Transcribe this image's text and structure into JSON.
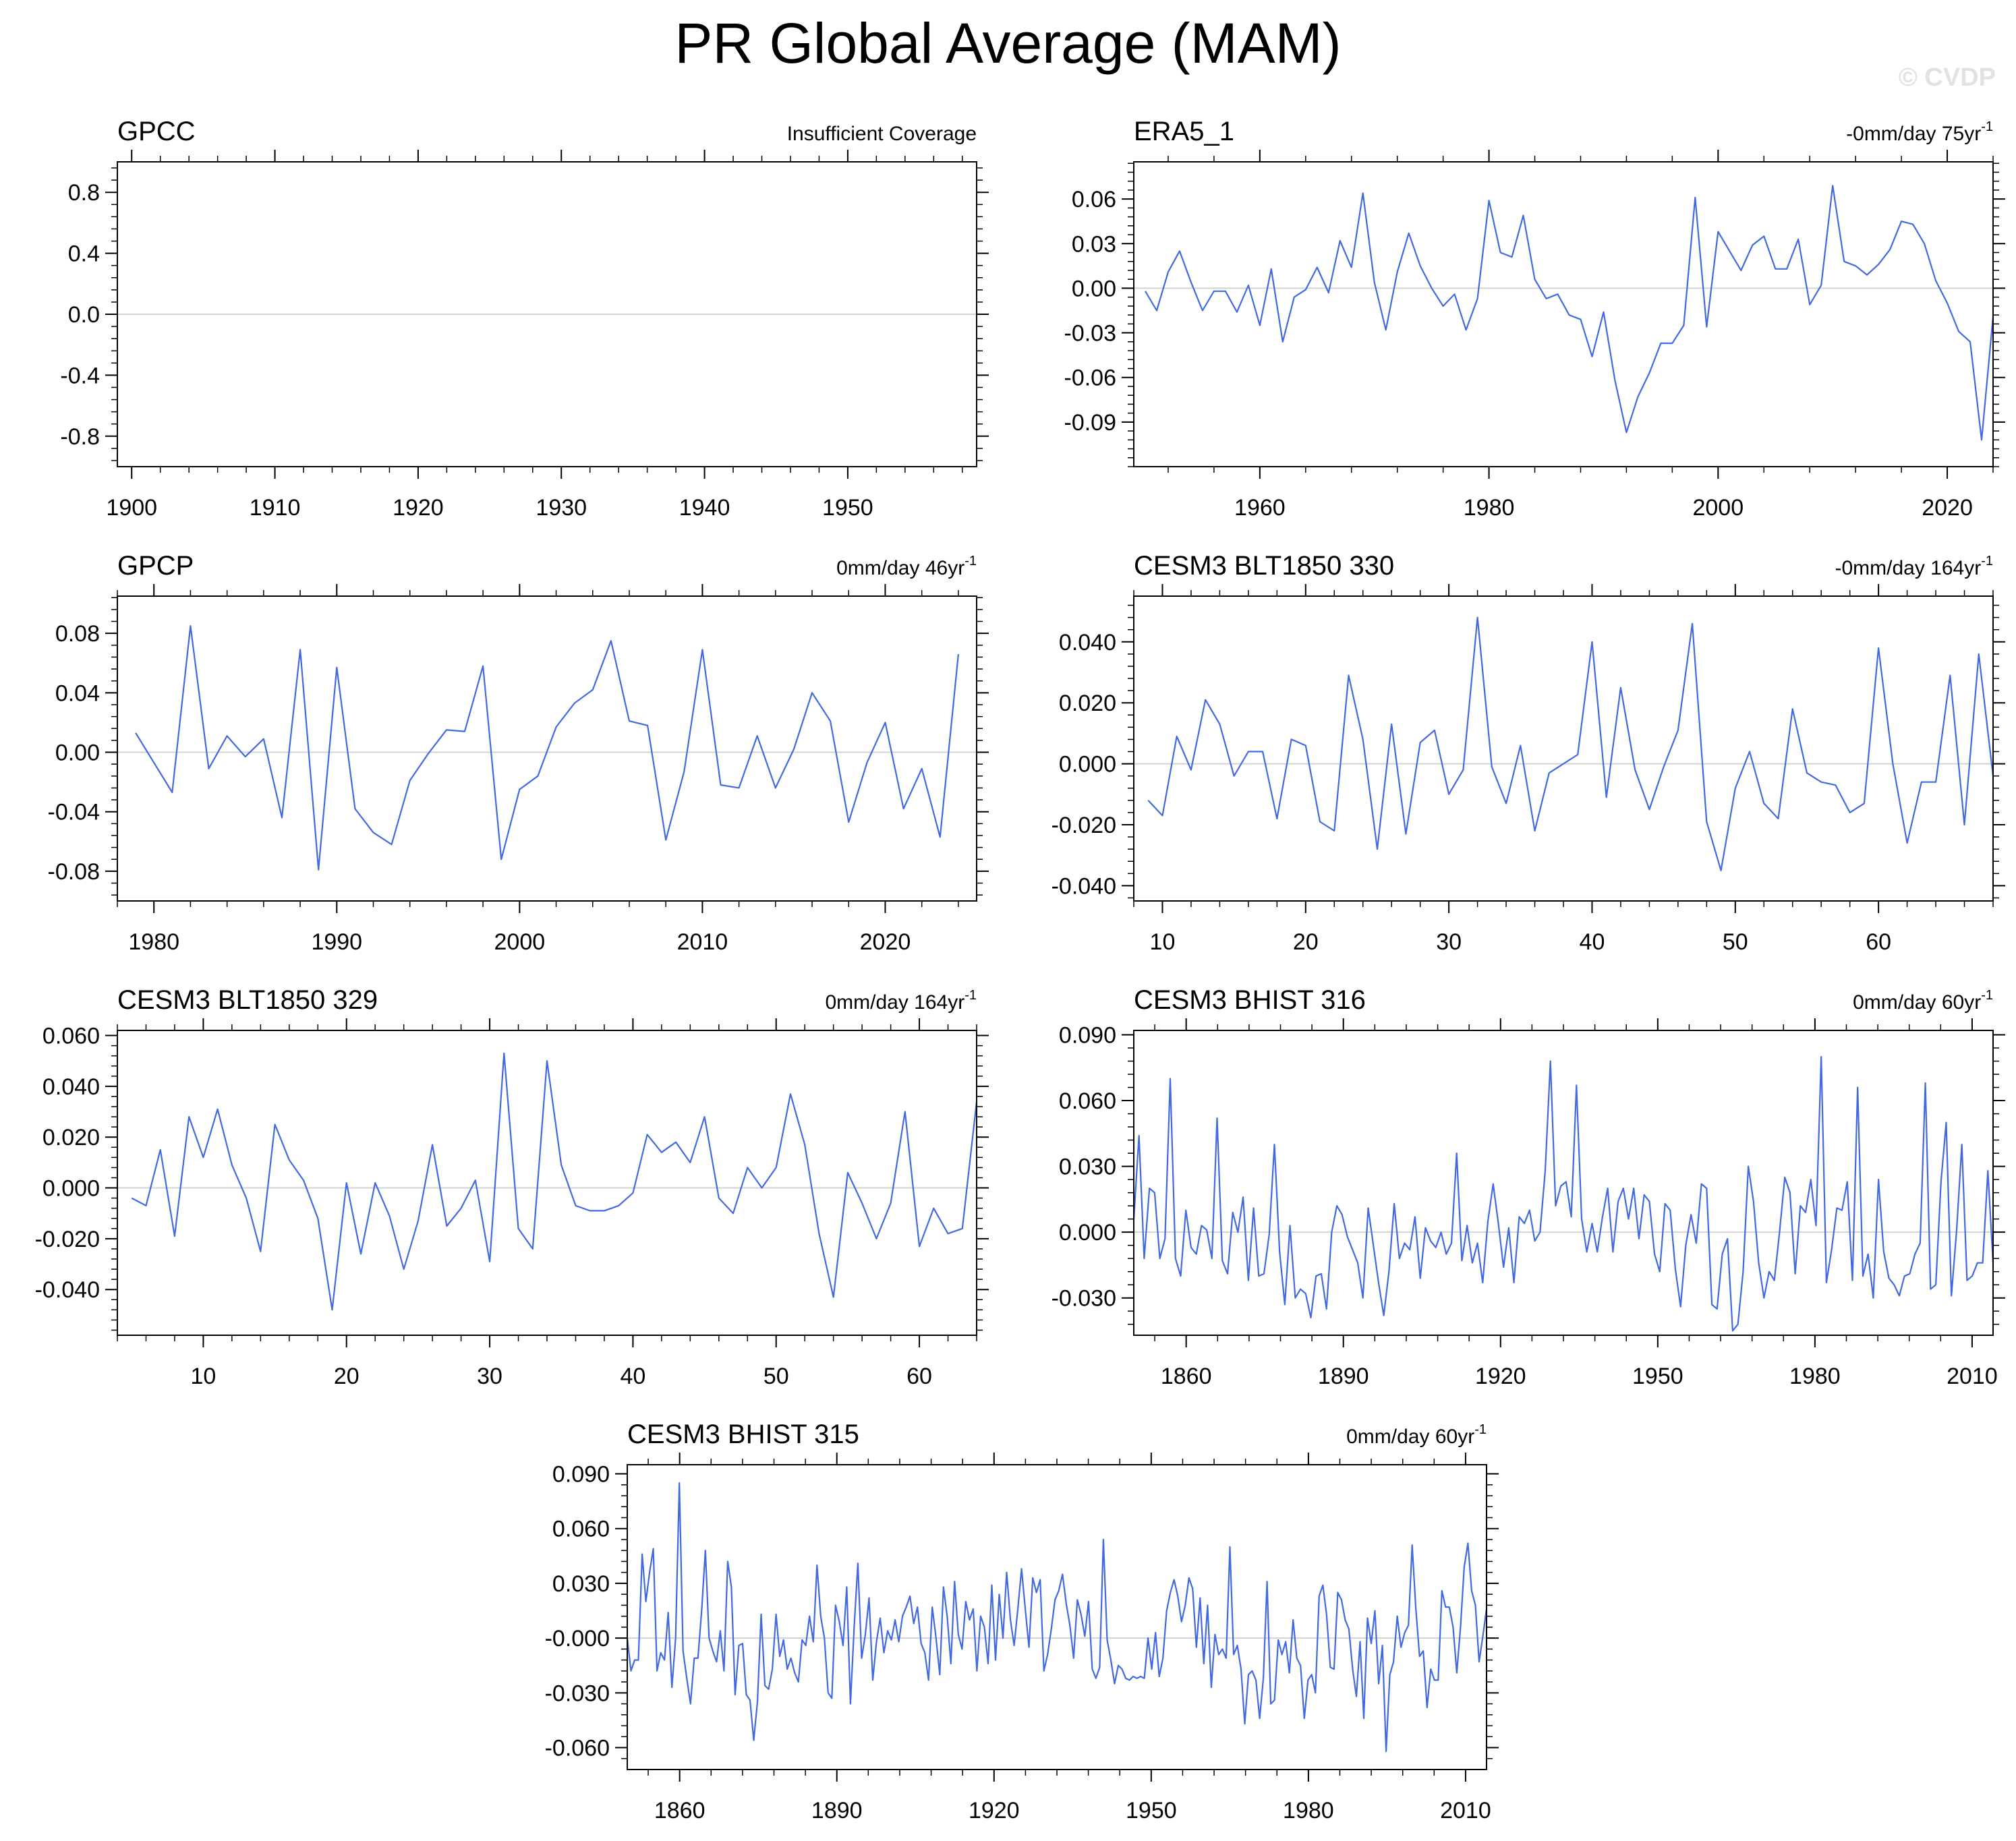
{
  "title": "PR Global Average (MAM)",
  "watermark": "© CVDP",
  "colors": {
    "line": "#4169e1",
    "zero_line": "#d3d3d3",
    "frame": "#000000"
  },
  "chart_data": [
    {
      "id": "gpcc",
      "type": "line",
      "title": "GPCC",
      "annotation": "Insufficient Coverage",
      "x": [],
      "values": [],
      "xlim": [
        1899,
        1959
      ],
      "ylim": [
        -1.0,
        1.0
      ],
      "xticks": [
        1900,
        1910,
        1920,
        1930,
        1940,
        1950
      ],
      "xtick_labels": [
        "1900",
        "1910",
        "1920",
        "1930",
        "1940",
        "1950"
      ],
      "yticks": [
        0.8,
        0.4,
        0.0,
        -0.4,
        -0.8
      ],
      "ytick_labels": [
        "0.8",
        "0.4",
        "0.0",
        "-0.4",
        "-0.8"
      ]
    },
    {
      "id": "era5",
      "type": "line",
      "title": "ERA5_1",
      "annotation": "-0mm/day 75yr",
      "annotation_sup": "-1",
      "x_start": 1950,
      "x_step": 1,
      "values": [
        -0.002,
        -0.015,
        0.011,
        0.025,
        0.004,
        -0.015,
        -0.002,
        -0.002,
        -0.016,
        0.002,
        -0.025,
        0.013,
        -0.036,
        -0.006,
        -0.001,
        0.014,
        -0.003,
        0.032,
        0.014,
        0.064,
        0.004,
        -0.028,
        0.011,
        0.037,
        0.015,
        0.0,
        -0.012,
        -0.004,
        -0.028,
        -0.007,
        0.059,
        0.024,
        0.021,
        0.049,
        0.006,
        -0.007,
        -0.004,
        -0.018,
        -0.021,
        -0.046,
        -0.016,
        -0.062,
        -0.097,
        -0.073,
        -0.057,
        -0.037,
        -0.037,
        -0.025,
        0.061,
        -0.026,
        0.038,
        0.025,
        0.012,
        0.029,
        0.035,
        0.013,
        0.013,
        0.033,
        -0.011,
        0.002,
        0.069,
        0.018,
        0.015,
        0.009,
        0.016,
        0.026,
        0.045,
        0.043,
        0.03,
        0.005,
        -0.01,
        -0.029,
        -0.036,
        -0.102,
        -0.019
      ],
      "xlim": [
        1949,
        2024
      ],
      "ylim": [
        -0.12,
        0.085
      ],
      "xticks": [
        1960,
        1980,
        2000,
        2020
      ],
      "xtick_labels": [
        "1960",
        "1980",
        "2000",
        "2020"
      ],
      "yticks": [
        0.06,
        0.03,
        0.0,
        -0.03,
        -0.06,
        -0.09
      ],
      "ytick_labels": [
        "0.06",
        "0.03",
        "0.00",
        "-0.03",
        "-0.06",
        "-0.09"
      ]
    },
    {
      "id": "gpcp",
      "type": "line",
      "title": "GPCP",
      "annotation": "0mm/day 46yr",
      "annotation_sup": "-1",
      "x_start": 1979,
      "x_step": 1,
      "values": [
        0.013,
        -0.007,
        -0.027,
        0.085,
        -0.011,
        0.011,
        -0.003,
        0.009,
        -0.044,
        0.069,
        -0.079,
        0.057,
        -0.038,
        -0.054,
        -0.062,
        -0.019,
        -0.001,
        0.015,
        0.014,
        0.058,
        -0.072,
        -0.025,
        -0.016,
        0.017,
        0.033,
        0.042,
        0.075,
        0.021,
        0.018,
        -0.059,
        -0.013,
        0.069,
        -0.022,
        -0.024,
        0.011,
        -0.024,
        0.002,
        0.04,
        0.021,
        -0.047,
        -0.007,
        0.02,
        -0.038,
        -0.011,
        -0.057,
        0.066
      ],
      "xlim": [
        1978,
        2025
      ],
      "ylim": [
        -0.1,
        0.105
      ],
      "xticks": [
        1980,
        1990,
        2000,
        2010,
        2020
      ],
      "xtick_labels": [
        "1980",
        "1990",
        "2000",
        "2010",
        "2020"
      ],
      "yticks": [
        0.08,
        0.04,
        0.0,
        -0.04,
        -0.08
      ],
      "ytick_labels": [
        "0.08",
        "0.04",
        "0.00",
        "-0.04",
        "-0.08"
      ]
    },
    {
      "id": "blt330",
      "type": "line",
      "title": "CESM3 BLT1850 330",
      "annotation": "-0mm/day 164yr",
      "annotation_sup": "-1",
      "x_start": 9,
      "x_step": 1,
      "values": [
        -0.012,
        -0.017,
        0.009,
        -0.002,
        0.021,
        0.013,
        -0.004,
        0.004,
        0.004,
        -0.018,
        0.008,
        0.006,
        -0.019,
        -0.022,
        0.029,
        0.008,
        -0.028,
        0.013,
        -0.023,
        0.007,
        0.011,
        -0.01,
        -0.002,
        0.048,
        -0.001,
        -0.013,
        0.006,
        -0.022,
        -0.003,
        0.0,
        0.003,
        0.04,
        -0.011,
        0.025,
        -0.002,
        -0.015,
        -0.001,
        0.011,
        0.046,
        -0.019,
        -0.035,
        -0.008,
        0.004,
        -0.013,
        -0.018,
        0.018,
        -0.003,
        -0.006,
        -0.007,
        -0.016,
        -0.013,
        0.038,
        0.0,
        -0.026,
        -0.006,
        -0.006,
        0.029,
        -0.02,
        0.036,
        -0.004
      ],
      "xlim": [
        8,
        68
      ],
      "ylim": [
        -0.045,
        0.055
      ],
      "xticks": [
        10,
        20,
        30,
        40,
        50,
        60
      ],
      "xtick_labels": [
        "10",
        "20",
        "30",
        "40",
        "50",
        "60"
      ],
      "yticks": [
        0.04,
        0.02,
        0.0,
        -0.02,
        -0.04
      ],
      "ytick_labels": [
        "0.040",
        "0.020",
        "0.000",
        "-0.020",
        "-0.040"
      ]
    },
    {
      "id": "blt329",
      "type": "line",
      "title": "CESM3 BLT1850 329",
      "annotation": "0mm/day 164yr",
      "annotation_sup": "-1",
      "x_start": 5,
      "x_step": 1,
      "values": [
        -0.004,
        -0.007,
        0.015,
        -0.019,
        0.028,
        0.012,
        0.031,
        0.009,
        -0.004,
        -0.025,
        0.025,
        0.011,
        0.003,
        -0.012,
        -0.048,
        0.002,
        -0.026,
        0.002,
        -0.011,
        -0.032,
        -0.013,
        0.017,
        -0.015,
        -0.008,
        0.003,
        -0.029,
        0.053,
        -0.016,
        -0.024,
        0.05,
        0.009,
        -0.007,
        -0.009,
        -0.009,
        -0.007,
        -0.002,
        0.021,
        0.014,
        0.018,
        0.01,
        0.028,
        -0.004,
        -0.01,
        0.008,
        0.0,
        0.008,
        0.037,
        0.017,
        -0.018,
        -0.043,
        0.006,
        -0.006,
        -0.02,
        -0.006,
        0.03,
        -0.023,
        -0.008,
        -0.018,
        -0.016,
        0.034
      ],
      "xlim": [
        4,
        64
      ],
      "ylim": [
        -0.058,
        0.062
      ],
      "xticks": [
        10,
        20,
        30,
        40,
        50,
        60
      ],
      "xtick_labels": [
        "10",
        "20",
        "30",
        "40",
        "50",
        "60"
      ],
      "yticks": [
        0.06,
        0.04,
        0.02,
        0.0,
        -0.02,
        -0.04
      ],
      "ytick_labels": [
        "0.060",
        "0.040",
        "0.020",
        "0.000",
        "-0.020",
        "-0.040"
      ]
    },
    {
      "id": "bhist316",
      "type": "line",
      "title": "CESM3 BHIST 316",
      "annotation": "0mm/day 60yr",
      "annotation_sup": "-1",
      "x_start": 1850,
      "x_step": 1,
      "values": [
        0.006,
        0.044,
        -0.012,
        0.02,
        0.018,
        -0.012,
        -0.003,
        0.07,
        -0.012,
        -0.02,
        0.01,
        -0.007,
        -0.01,
        0.003,
        0.001,
        -0.012,
        0.052,
        -0.013,
        -0.019,
        0.009,
        0.0,
        0.016,
        -0.022,
        0.011,
        -0.02,
        -0.019,
        -0.001,
        0.04,
        -0.009,
        -0.033,
        0.003,
        -0.03,
        -0.026,
        -0.028,
        -0.039,
        -0.02,
        -0.019,
        -0.035,
        0.0,
        0.012,
        0.008,
        -0.002,
        -0.008,
        -0.014,
        -0.03,
        0.011,
        -0.006,
        -0.023,
        -0.038,
        -0.018,
        0.013,
        -0.012,
        -0.005,
        -0.008,
        0.007,
        -0.021,
        0.002,
        -0.004,
        -0.007,
        0.0,
        -0.01,
        -0.005,
        0.036,
        -0.013,
        0.003,
        -0.014,
        -0.005,
        -0.023,
        0.005,
        0.022,
        0.004,
        -0.016,
        0.002,
        -0.023,
        0.007,
        0.004,
        0.01,
        -0.004,
        0.0,
        0.028,
        0.078,
        0.012,
        0.021,
        0.023,
        0.007,
        0.067,
        0.006,
        -0.009,
        0.004,
        -0.009,
        0.007,
        0.02,
        -0.009,
        0.014,
        0.02,
        0.006,
        0.02,
        -0.003,
        0.017,
        0.014,
        -0.01,
        -0.018,
        0.013,
        0.01,
        -0.017,
        -0.034,
        -0.006,
        0.008,
        -0.005,
        0.022,
        0.02,
        -0.033,
        -0.035,
        -0.01,
        -0.003,
        -0.045,
        -0.042,
        -0.018,
        0.03,
        0.014,
        -0.014,
        -0.03,
        -0.018,
        -0.022,
        0.0,
        0.025,
        0.018,
        -0.019,
        0.012,
        0.009,
        0.024,
        0.003,
        0.08,
        -0.023,
        -0.008,
        0.011,
        0.01,
        0.023,
        -0.022,
        0.066,
        -0.02,
        -0.01,
        -0.03,
        0.024,
        -0.009,
        -0.021,
        -0.024,
        -0.029,
        -0.02,
        -0.019,
        -0.01,
        -0.005,
        0.068,
        -0.026,
        -0.024,
        0.023,
        0.05,
        -0.029,
        0.001,
        0.04,
        -0.022,
        -0.02,
        -0.014,
        -0.014,
        0.028,
        -0.014
      ],
      "xlim": [
        1850,
        2014
      ],
      "ylim": [
        -0.047,
        0.092
      ],
      "xticks": [
        1860,
        1890,
        1920,
        1950,
        1980,
        2010
      ],
      "xtick_labels": [
        "1860",
        "1890",
        "1920",
        "1950",
        "1980",
        "2010"
      ],
      "yticks": [
        0.09,
        0.06,
        0.03,
        0.0,
        -0.03
      ],
      "ytick_labels": [
        "0.090",
        "0.060",
        "0.030",
        "0.000",
        "-0.030"
      ]
    },
    {
      "id": "bhist315",
      "type": "line",
      "title": "CESM3 BHIST 315",
      "annotation": "0mm/day 60yr",
      "annotation_sup": "-1",
      "x_start": 1850,
      "x_step": 1,
      "values": [
        0.0,
        -0.018,
        -0.012,
        -0.012,
        0.046,
        0.02,
        0.036,
        0.049,
        -0.018,
        -0.008,
        -0.012,
        0.014,
        -0.027,
        0.0,
        0.085,
        -0.007,
        -0.022,
        -0.036,
        -0.011,
        -0.011,
        0.015,
        0.048,
        0.0,
        -0.007,
        -0.013,
        0.004,
        -0.018,
        0.042,
        0.028,
        -0.031,
        -0.004,
        -0.003,
        -0.031,
        -0.034,
        -0.056,
        -0.035,
        0.013,
        -0.026,
        -0.028,
        -0.017,
        0.013,
        -0.01,
        -0.001,
        -0.017,
        -0.011,
        -0.019,
        -0.024,
        -0.001,
        -0.004,
        0.012,
        -0.002,
        0.04,
        0.012,
        0.0,
        -0.03,
        -0.033,
        0.018,
        0.009,
        -0.004,
        0.028,
        -0.036,
        0.006,
        0.041,
        -0.011,
        0.002,
        0.022,
        -0.023,
        -0.002,
        0.011,
        -0.008,
        0.004,
        -0.001,
        0.01,
        -0.002,
        0.012,
        0.017,
        0.023,
        0.008,
        0.017,
        -0.003,
        -0.008,
        -0.023,
        0.017,
        0.0,
        -0.02,
        0.028,
        0.012,
        -0.014,
        0.031,
        0.002,
        -0.006,
        0.02,
        0.01,
        0.016,
        -0.018,
        0.012,
        0.006,
        -0.014,
        0.029,
        -0.012,
        0.024,
        0.0,
        0.036,
        0.01,
        -0.004,
        0.016,
        0.038,
        0.016,
        -0.005,
        0.033,
        0.025,
        0.032,
        -0.018,
        -0.009,
        0.005,
        0.021,
        0.026,
        0.035,
        0.019,
        0.007,
        -0.011,
        0.021,
        0.013,
        0.001,
        0.02,
        -0.017,
        -0.022,
        -0.016,
        0.054,
        -0.001,
        -0.012,
        -0.025,
        -0.015,
        -0.017,
        -0.022,
        -0.023,
        -0.021,
        -0.022,
        -0.021,
        -0.022,
        0.0,
        -0.017,
        0.003,
        -0.021,
        -0.011,
        0.015,
        0.025,
        0.032,
        0.023,
        0.009,
        0.018,
        0.033,
        0.027,
        -0.005,
        0.022,
        -0.014,
        0.018,
        -0.027,
        0.002,
        -0.009,
        -0.006,
        -0.011,
        0.05,
        -0.009,
        -0.004,
        -0.017,
        -0.047,
        -0.02,
        -0.018,
        -0.023,
        -0.044,
        -0.022,
        0.031,
        -0.036,
        -0.034,
        -0.001,
        -0.009,
        -0.002,
        -0.019,
        0.01,
        -0.011,
        -0.015,
        -0.044,
        -0.023,
        -0.02,
        -0.03,
        0.023,
        0.029,
        0.013,
        -0.016,
        -0.017,
        0.025,
        0.021,
        0.01,
        0.005,
        -0.017,
        -0.032,
        -0.002,
        -0.044,
        0.011,
        -0.003,
        0.015,
        -0.025,
        -0.004,
        -0.062,
        -0.02,
        -0.013,
        0.012,
        -0.005,
        0.003,
        0.007,
        0.051,
        0.016,
        -0.01,
        -0.007,
        -0.038,
        -0.017,
        -0.023,
        -0.023,
        0.026,
        0.017,
        0.017,
        0.006,
        -0.019,
        0.006,
        0.039,
        0.052,
        0.026,
        0.018,
        -0.013,
        0.001,
        0.016
      ],
      "x_step_note": "fine",
      "xlim": [
        1850,
        2014
      ],
      "ylim": [
        -0.072,
        0.095
      ],
      "xticks": [
        1860,
        1890,
        1920,
        1950,
        1980,
        2010
      ],
      "xtick_labels": [
        "1860",
        "1890",
        "1920",
        "1950",
        "1980",
        "2010"
      ],
      "yticks": [
        0.09,
        0.06,
        0.03,
        0.0,
        -0.03,
        -0.06
      ],
      "ytick_labels": [
        "0.090",
        "0.060",
        "0.030",
        "-0.000",
        "-0.030",
        "-0.060"
      ]
    }
  ]
}
